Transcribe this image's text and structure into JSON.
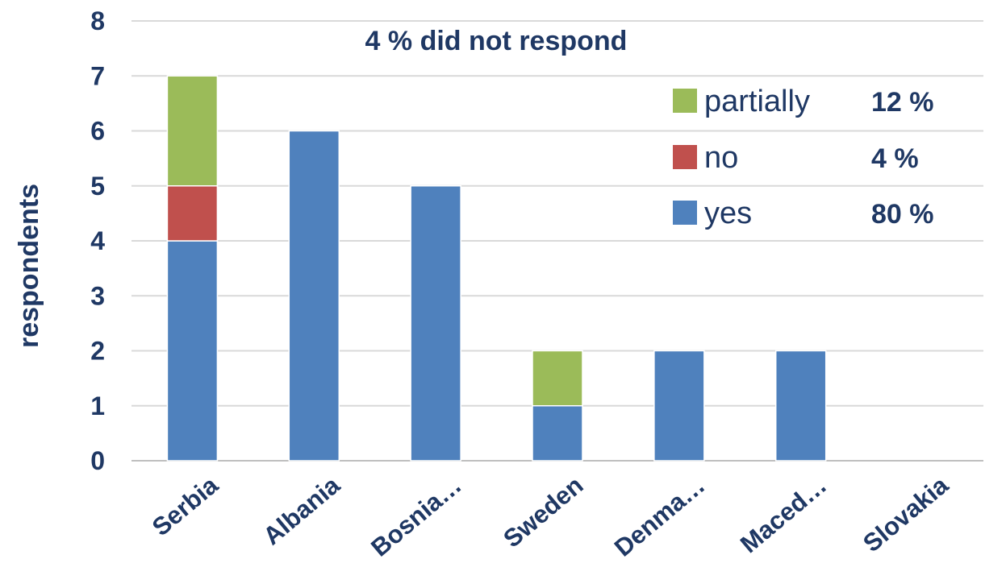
{
  "chart_data": {
    "type": "bar",
    "stacked": true,
    "categories": [
      "Serbia",
      "Albania",
      "Bosnia…",
      "Sweden",
      "Denma…",
      "Maced…",
      "Slovakia"
    ],
    "series": [
      {
        "name": "yes",
        "color": "#4f81bd",
        "values": [
          4,
          6,
          5,
          1,
          2,
          2,
          0
        ]
      },
      {
        "name": "no",
        "color": "#c0504d",
        "values": [
          1,
          0,
          0,
          0,
          0,
          0,
          0
        ]
      },
      {
        "name": "partially",
        "color": "#9bbb59",
        "values": [
          2,
          0,
          0,
          1,
          0,
          0,
          0
        ]
      }
    ],
    "legend": [
      {
        "name": "partially",
        "percent": "12 %",
        "color": "#9bbb59"
      },
      {
        "name": "no",
        "percent": "4 %",
        "color": "#c0504d"
      },
      {
        "name": "yes",
        "percent": "80 %",
        "color": "#4f81bd"
      }
    ],
    "annotation": "4 % did not respond",
    "ylabel": "respondents",
    "xlabel": "",
    "ylim": [
      0,
      8
    ],
    "yticks": [
      "0",
      "1",
      "2",
      "3",
      "4",
      "5",
      "6",
      "7",
      "8"
    ],
    "grid": true,
    "legend_position": "top-right",
    "colors": {
      "text": "#1f3864",
      "grid": "#d9d9d9"
    }
  }
}
